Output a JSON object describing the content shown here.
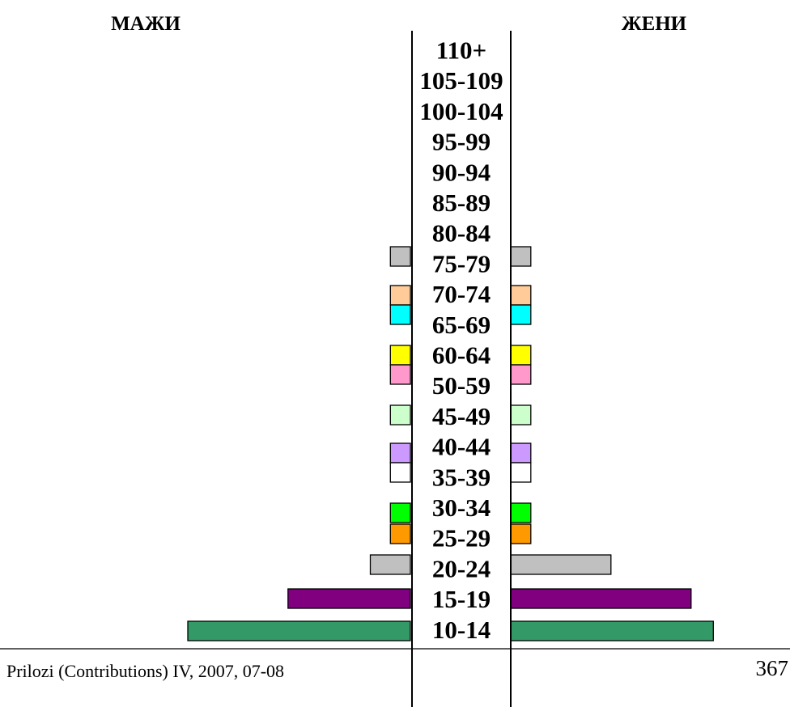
{
  "chart_data": {
    "type": "bar",
    "orientation": "horizontal",
    "categories": [
      "110+",
      "105-109",
      "100-104",
      "95-99",
      "90-94",
      "85-89",
      "80-84",
      "75-79",
      "70-74",
      "65-69",
      "60-64",
      "50-59",
      "45-49",
      "40-44",
      "35-39",
      "30-34",
      "25-29",
      "20-24",
      "15-19",
      "10-14"
    ],
    "series": [
      {
        "name": "МАЖИ",
        "values": [
          0,
          0,
          0,
          0,
          0,
          0,
          0,
          9,
          9,
          9,
          9,
          9,
          9,
          9,
          9,
          9,
          9,
          18,
          55,
          100
        ]
      },
      {
        "name": "ЖЕНИ",
        "values": [
          0,
          0,
          0,
          0,
          0,
          0,
          0,
          9,
          9,
          9,
          9,
          9,
          9,
          9,
          9,
          9,
          9,
          45,
          81,
          91
        ]
      }
    ],
    "colors": [
      null,
      null,
      null,
      null,
      null,
      null,
      null,
      "#C0C0C0",
      "#FFCC99",
      "#00FFFF",
      "#FFFF00",
      "#FF99CC",
      "#CCFFCC",
      "#CC99FF",
      "#FFFFFF",
      "#00FF00",
      "#FF9900",
      "#C0C0C0",
      "#800080",
      "#339966"
    ],
    "grid": false,
    "legend": "none"
  },
  "footer": {
    "citation": "Prilozi (Contributions) IV, 2007, 07-08",
    "page_number": "367"
  }
}
